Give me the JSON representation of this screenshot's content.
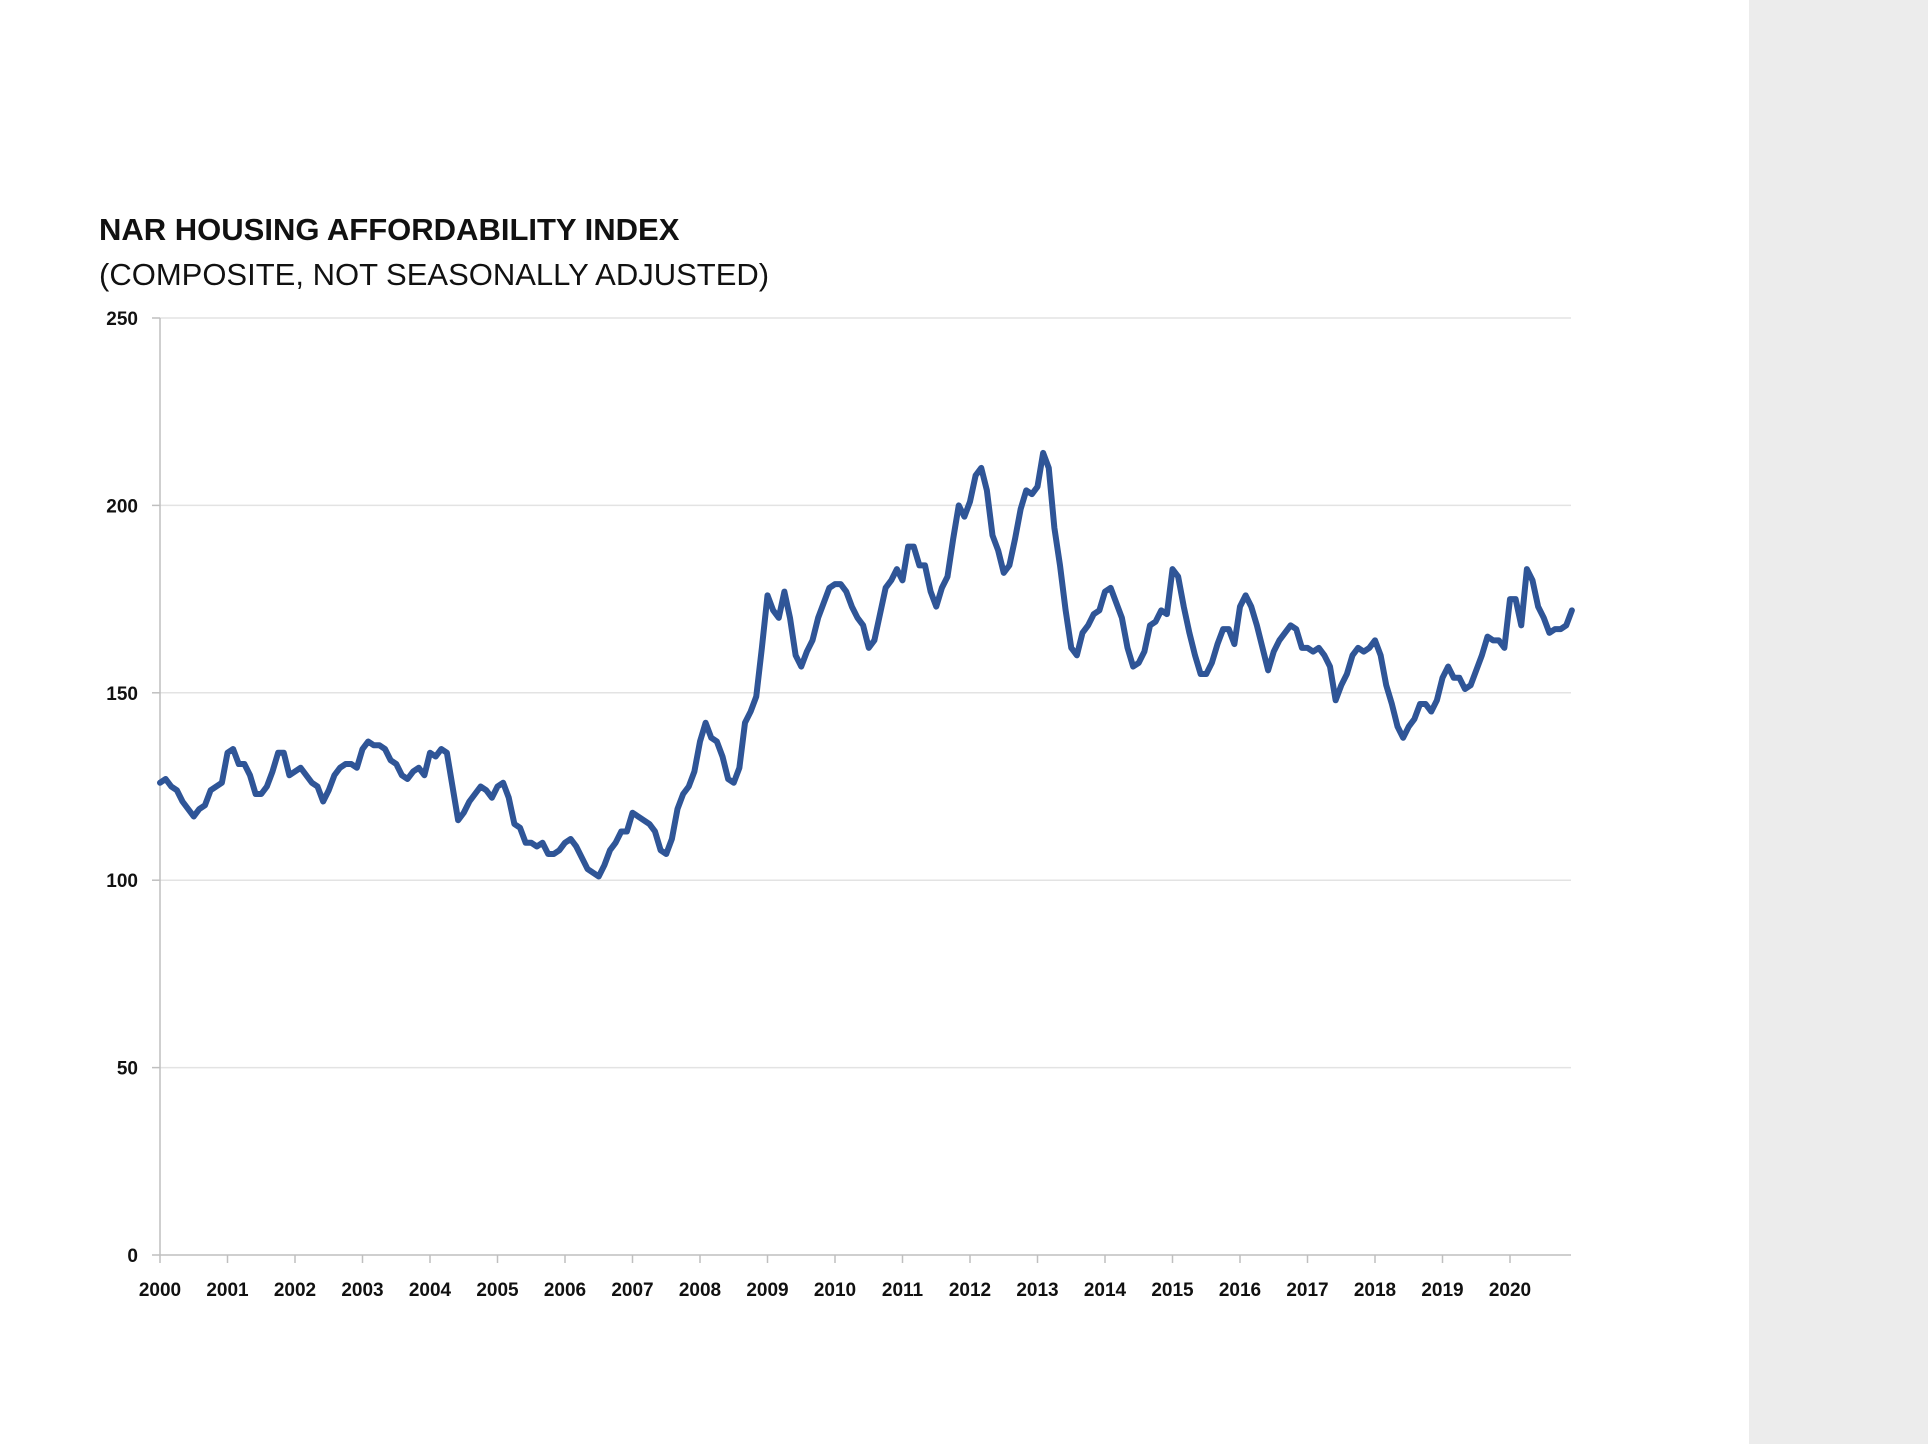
{
  "colors": {
    "line": "#2f5597",
    "grid": "#e3e3e3",
    "axis": "#bfbfbf",
    "side_panel": "#ececec"
  },
  "chart_data": {
    "type": "line",
    "title": "NAR HOUSING AFFORDABILITY INDEX",
    "subtitle": "(COMPOSITE, NOT SEASONALLY ADJUSTED)",
    "xlabel": "",
    "ylabel": "",
    "ylim": [
      0,
      250
    ],
    "yticks": [
      0,
      50,
      100,
      150,
      200,
      250
    ],
    "x_categories": [
      "2000",
      "2001",
      "2002",
      "2003",
      "2004",
      "2005",
      "2006",
      "2007",
      "2008",
      "2009",
      "2010",
      "2011",
      "2012",
      "2013",
      "2014",
      "2015",
      "2016",
      "2017",
      "2018",
      "2019",
      "2020"
    ],
    "grid": true,
    "legend": "none",
    "series": [
      {
        "color": "#2f5597",
        "start": "2000-01",
        "frequency": "monthly",
        "values": [
          126,
          127,
          125,
          124,
          121,
          119,
          117,
          119,
          120,
          124,
          125,
          126,
          134,
          135,
          131,
          131,
          128,
          123,
          123,
          125,
          129,
          134,
          134,
          128,
          129,
          130,
          128,
          126,
          125,
          121,
          124,
          128,
          130,
          131,
          131,
          130,
          135,
          137,
          136,
          136,
          135,
          132,
          131,
          128,
          127,
          129,
          130,
          128,
          134,
          133,
          135,
          134,
          125,
          116,
          118,
          121,
          123,
          125,
          124,
          122,
          125,
          126,
          122,
          115,
          114,
          110,
          110,
          109,
          110,
          107,
          107,
          108,
          110,
          111,
          109,
          106,
          103,
          102,
          101,
          104,
          108,
          110,
          113,
          113,
          118,
          117,
          116,
          115,
          113,
          108,
          107,
          111,
          119,
          123,
          125,
          129,
          137,
          142,
          138,
          137,
          133,
          127,
          126,
          130,
          142,
          145,
          149,
          162,
          176,
          172,
          170,
          177,
          170,
          160,
          157,
          161,
          164,
          170,
          174,
          178,
          179,
          179,
          177,
          173,
          170,
          168,
          162,
          164,
          171,
          178,
          180,
          183,
          180,
          189,
          189,
          184,
          184,
          177,
          173,
          178,
          181,
          191,
          200,
          197,
          201,
          208,
          210,
          204,
          192,
          188,
          182,
          184,
          191,
          199,
          204,
          203,
          205,
          214,
          210,
          194,
          184,
          172,
          162,
          160,
          166,
          168,
          171,
          172,
          177,
          178,
          174,
          170,
          162,
          157,
          158,
          161,
          168,
          169,
          172,
          171,
          183,
          181,
          173,
          166,
          160,
          155,
          155,
          158,
          163,
          167,
          167,
          163,
          173,
          176,
          173,
          168,
          162,
          156,
          161,
          164,
          166,
          168,
          167,
          162,
          162,
          161,
          162,
          160,
          157,
          148,
          152,
          155,
          160,
          162,
          161,
          162,
          164,
          160,
          152,
          147,
          141,
          138,
          141,
          143,
          147,
          147,
          145,
          148,
          154,
          157,
          154,
          154,
          151,
          152,
          156,
          160,
          165,
          164,
          164,
          162,
          175,
          175,
          168,
          183,
          180,
          173,
          170,
          166,
          167,
          167,
          168,
          172
        ]
      }
    ]
  }
}
